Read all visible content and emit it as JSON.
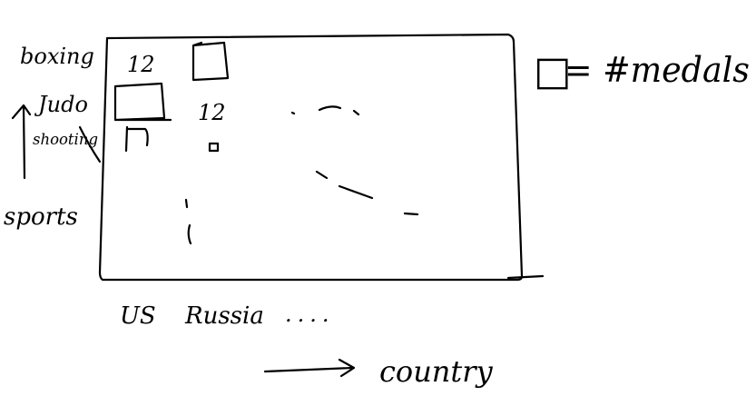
{
  "diagram": {
    "row_labels": [
      "boxing",
      "Judo",
      "shooting"
    ],
    "column_labels": [
      "US",
      "Russia"
    ],
    "column_ellipsis": "....",
    "y_axis_label": "sports",
    "x_axis_label": "country",
    "cell_values": {
      "boxing_us": "12",
      "judo_russia": "12"
    },
    "legend": {
      "symbol": "□",
      "text": "= #medals"
    },
    "ink_color": "#000000"
  }
}
